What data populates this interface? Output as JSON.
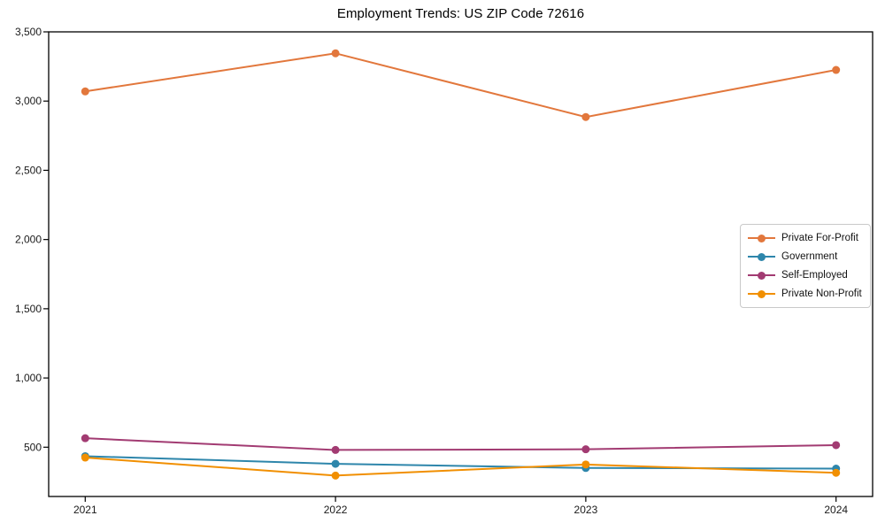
{
  "chart_data": {
    "type": "line",
    "title": "Employment Trends: US ZIP Code 72616",
    "categories": [
      "2021",
      "2022",
      "2023",
      "2024"
    ],
    "series": [
      {
        "name": "Private For-Profit",
        "color": "#E2773C",
        "values": [
          3070,
          3345,
          2885,
          3225
        ]
      },
      {
        "name": "Government",
        "color": "#2E86AB",
        "values": [
          435,
          380,
          350,
          345
        ]
      },
      {
        "name": "Self-Employed",
        "color": "#A23B72",
        "values": [
          565,
          480,
          485,
          515
        ]
      },
      {
        "name": "Private Non-Profit",
        "color": "#F18F01",
        "values": [
          425,
          295,
          375,
          315
        ]
      }
    ],
    "xlabel": "",
    "ylabel": "",
    "ylim": [
      144,
      3500
    ],
    "yticks": [
      500,
      1000,
      1500,
      2000,
      2500,
      3000,
      3500
    ],
    "ytick_labels": [
      "500",
      "1,000",
      "1,500",
      "2,000",
      "2,500",
      "3,000",
      "3,500"
    ],
    "grid": false,
    "legend_position": "center-right",
    "axis_color": "#000000",
    "tick_label_color": "#1a1a1a",
    "marker": "circle",
    "line_width": 2,
    "marker_size": 9
  }
}
